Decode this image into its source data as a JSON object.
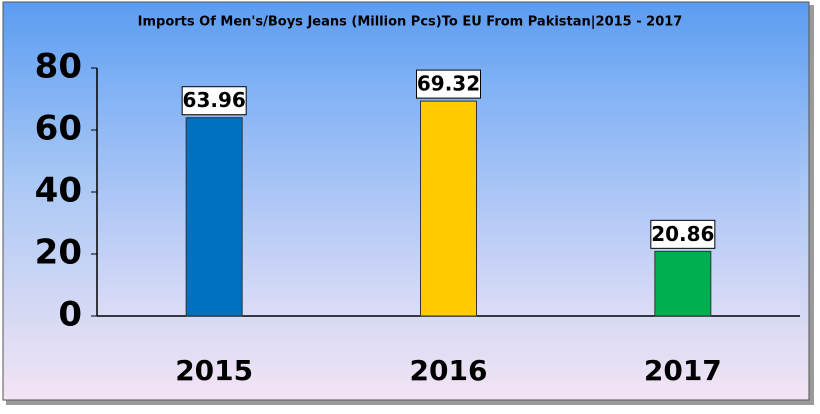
{
  "chart_data": {
    "type": "bar",
    "title": "Imports Of Men's/Boys Jeans (Million Pcs)To EU From Pakistan|2015 - 2017",
    "categories": [
      "2015",
      "2016",
      "2017"
    ],
    "values": [
      63.96,
      69.32,
      20.86
    ],
    "colors": [
      "#0070c0",
      "#ffcc00",
      "#00b050"
    ],
    "ylim": [
      0,
      80
    ],
    "yticks": [
      0,
      20,
      40,
      60,
      80
    ],
    "grid": false
  }
}
